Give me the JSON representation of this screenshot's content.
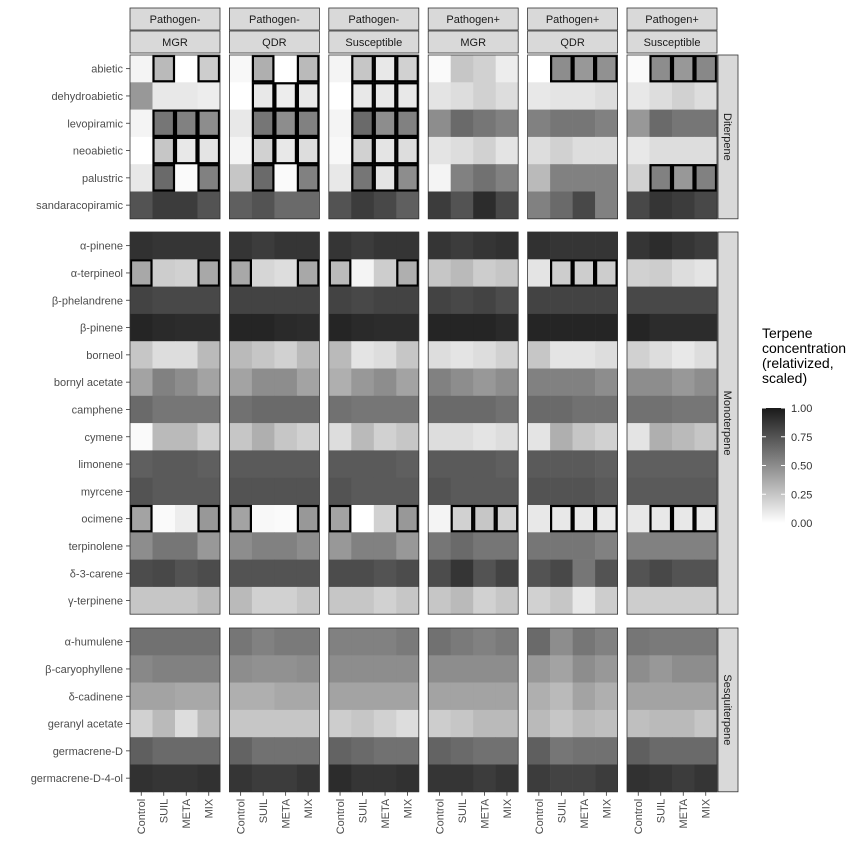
{
  "chart_data": {
    "type": "heatmap",
    "title": "",
    "xlabel": "",
    "ylabel": "",
    "facet_cols_top": [
      "Pathogen-",
      "Pathogen-",
      "Pathogen-",
      "Pathogen+",
      "Pathogen+",
      "Pathogen+"
    ],
    "facet_cols_bottom": [
      "MGR",
      "QDR",
      "Susceptible",
      "MGR",
      "QDR",
      "Susceptible"
    ],
    "x_categories": [
      "Control",
      "SUIL",
      "META",
      "MIX"
    ],
    "row_groups": [
      {
        "name": "Diterpene",
        "rows": [
          "abietic",
          "dehydroabietic",
          "levopiramic",
          "neoabietic",
          "palustric",
          "sandaracopiramic"
        ]
      },
      {
        "name": "Monoterpene",
        "rows": [
          "α-pinene",
          "α-terpineol",
          "β-phelandrene",
          "β-pinene",
          "borneol",
          "bornyl acetate",
          "camphene",
          "cymene",
          "limonene",
          "myrcene",
          "ocimene",
          "terpinolene",
          "δ-3-carene",
          "γ-terpinene"
        ]
      },
      {
        "name": "Sesquiterpene",
        "rows": [
          "α-humulene",
          "β-caryophyllene",
          "δ-cadinene",
          "geranyl acetate",
          "germacrene-D",
          "germacrene-D-4-ol"
        ]
      }
    ],
    "legend": {
      "title_lines": [
        "Terpene",
        "concentration",
        "(relativized,",
        "scaled)"
      ],
      "ticks": [
        "1.00",
        "0.75",
        "0.50",
        "0.25",
        "0.00"
      ],
      "tick_values": [
        1.0,
        0.75,
        0.5,
        0.25,
        0.0
      ],
      "color_low": "#ffffff",
      "color_high": "#1a1a1a"
    },
    "values": [
      [
        [
          0.05,
          0.3,
          0.0,
          0.22
        ],
        [
          0.03,
          0.35,
          0.0,
          0.3
        ],
        [
          0.05,
          0.25,
          0.1,
          0.2
        ],
        [
          0.02,
          0.25,
          0.2,
          0.08
        ],
        [
          0.0,
          0.5,
          0.45,
          0.48
        ],
        [
          0.02,
          0.5,
          0.45,
          0.52
        ]
      ],
      [
        [
          0.45,
          0.1,
          0.1,
          0.08
        ],
        [
          0.0,
          0.1,
          0.08,
          0.1
        ],
        [
          0.0,
          0.1,
          0.1,
          0.1
        ],
        [
          0.12,
          0.15,
          0.2,
          0.15
        ],
        [
          0.1,
          0.12,
          0.12,
          0.15
        ],
        [
          0.1,
          0.15,
          0.2,
          0.15
        ]
      ],
      [
        [
          0.05,
          0.6,
          0.55,
          0.5
        ],
        [
          0.1,
          0.6,
          0.5,
          0.55
        ],
        [
          0.05,
          0.65,
          0.5,
          0.55
        ],
        [
          0.5,
          0.65,
          0.6,
          0.55
        ],
        [
          0.55,
          0.6,
          0.6,
          0.55
        ],
        [
          0.45,
          0.65,
          0.6,
          0.6
        ]
      ],
      [
        [
          0.0,
          0.25,
          0.1,
          0.12
        ],
        [
          0.05,
          0.2,
          0.1,
          0.15
        ],
        [
          0.03,
          0.2,
          0.12,
          0.15
        ],
        [
          0.12,
          0.15,
          0.2,
          0.12
        ],
        [
          0.15,
          0.2,
          0.15,
          0.15
        ],
        [
          0.1,
          0.15,
          0.15,
          0.15
        ]
      ],
      [
        [
          0.1,
          0.65,
          0.02,
          0.55
        ],
        [
          0.25,
          0.65,
          0.02,
          0.55
        ],
        [
          0.1,
          0.6,
          0.12,
          0.5
        ],
        [
          0.05,
          0.55,
          0.62,
          0.55
        ],
        [
          0.3,
          0.55,
          0.55,
          0.55
        ],
        [
          0.2,
          0.55,
          0.45,
          0.55
        ]
      ],
      [
        [
          0.75,
          0.85,
          0.85,
          0.75
        ],
        [
          0.7,
          0.75,
          0.65,
          0.65
        ],
        [
          0.75,
          0.85,
          0.8,
          0.7
        ],
        [
          0.85,
          0.75,
          0.92,
          0.8
        ],
        [
          0.55,
          0.65,
          0.8,
          0.55
        ],
        [
          0.8,
          0.88,
          0.85,
          0.8
        ]
      ],
      [
        [
          0.9,
          0.88,
          0.88,
          0.88
        ],
        [
          0.88,
          0.85,
          0.88,
          0.88
        ],
        [
          0.88,
          0.85,
          0.88,
          0.88
        ],
        [
          0.88,
          0.85,
          0.88,
          0.9
        ],
        [
          0.9,
          0.88,
          0.88,
          0.88
        ],
        [
          0.88,
          0.92,
          0.88,
          0.85
        ]
      ],
      [
        [
          0.38,
          0.22,
          0.2,
          0.38
        ],
        [
          0.38,
          0.18,
          0.15,
          0.38
        ],
        [
          0.3,
          0.05,
          0.22,
          0.35
        ],
        [
          0.25,
          0.3,
          0.22,
          0.25
        ],
        [
          0.12,
          0.22,
          0.22,
          0.22
        ],
        [
          0.2,
          0.22,
          0.15,
          0.12
        ]
      ],
      [
        [
          0.82,
          0.8,
          0.8,
          0.8
        ],
        [
          0.82,
          0.82,
          0.82,
          0.82
        ],
        [
          0.82,
          0.8,
          0.82,
          0.82
        ],
        [
          0.82,
          0.8,
          0.82,
          0.78
        ],
        [
          0.82,
          0.82,
          0.82,
          0.82
        ],
        [
          0.8,
          0.8,
          0.8,
          0.8
        ]
      ],
      [
        [
          0.95,
          0.93,
          0.92,
          0.92
        ],
        [
          0.95,
          0.95,
          0.93,
          0.92
        ],
        [
          0.95,
          0.93,
          0.92,
          0.92
        ],
        [
          0.95,
          0.95,
          0.95,
          0.93
        ],
        [
          0.95,
          0.95,
          0.95,
          0.95
        ],
        [
          0.95,
          0.92,
          0.92,
          0.92
        ]
      ],
      [
        [
          0.25,
          0.15,
          0.15,
          0.3
        ],
        [
          0.3,
          0.25,
          0.2,
          0.3
        ],
        [
          0.3,
          0.12,
          0.15,
          0.25
        ],
        [
          0.15,
          0.12,
          0.15,
          0.2
        ],
        [
          0.25,
          0.12,
          0.12,
          0.15
        ],
        [
          0.2,
          0.15,
          0.1,
          0.15
        ]
      ],
      [
        [
          0.4,
          0.55,
          0.5,
          0.4
        ],
        [
          0.4,
          0.5,
          0.5,
          0.4
        ],
        [
          0.35,
          0.45,
          0.5,
          0.4
        ],
        [
          0.55,
          0.5,
          0.45,
          0.5
        ],
        [
          0.55,
          0.55,
          0.55,
          0.5
        ],
        [
          0.5,
          0.5,
          0.45,
          0.5
        ]
      ],
      [
        [
          0.65,
          0.6,
          0.6,
          0.6
        ],
        [
          0.62,
          0.65,
          0.65,
          0.65
        ],
        [
          0.62,
          0.6,
          0.6,
          0.6
        ],
        [
          0.65,
          0.65,
          0.65,
          0.62
        ],
        [
          0.65,
          0.65,
          0.62,
          0.62
        ],
        [
          0.62,
          0.62,
          0.6,
          0.6
        ]
      ],
      [
        [
          0.02,
          0.3,
          0.3,
          0.2
        ],
        [
          0.25,
          0.35,
          0.25,
          0.2
        ],
        [
          0.15,
          0.3,
          0.2,
          0.25
        ],
        [
          0.15,
          0.15,
          0.12,
          0.15
        ],
        [
          0.12,
          0.35,
          0.25,
          0.2
        ],
        [
          0.12,
          0.35,
          0.3,
          0.25
        ]
      ],
      [
        [
          0.7,
          0.72,
          0.72,
          0.7
        ],
        [
          0.72,
          0.72,
          0.72,
          0.72
        ],
        [
          0.72,
          0.72,
          0.72,
          0.7
        ],
        [
          0.72,
          0.72,
          0.72,
          0.7
        ],
        [
          0.72,
          0.72,
          0.72,
          0.7
        ],
        [
          0.7,
          0.7,
          0.7,
          0.7
        ]
      ],
      [
        [
          0.75,
          0.72,
          0.72,
          0.72
        ],
        [
          0.75,
          0.75,
          0.75,
          0.75
        ],
        [
          0.75,
          0.72,
          0.72,
          0.72
        ],
        [
          0.75,
          0.72,
          0.72,
          0.72
        ],
        [
          0.75,
          0.75,
          0.75,
          0.72
        ],
        [
          0.72,
          0.72,
          0.72,
          0.72
        ]
      ],
      [
        [
          0.4,
          0.02,
          0.08,
          0.45
        ],
        [
          0.4,
          0.03,
          0.02,
          0.45
        ],
        [
          0.4,
          0.0,
          0.2,
          0.45
        ],
        [
          0.05,
          0.2,
          0.25,
          0.2
        ],
        [
          0.1,
          0.1,
          0.1,
          0.1
        ],
        [
          0.1,
          0.1,
          0.1,
          0.1
        ]
      ],
      [
        [
          0.5,
          0.6,
          0.6,
          0.45
        ],
        [
          0.5,
          0.55,
          0.55,
          0.5
        ],
        [
          0.45,
          0.55,
          0.55,
          0.45
        ],
        [
          0.6,
          0.65,
          0.6,
          0.6
        ],
        [
          0.6,
          0.6,
          0.6,
          0.55
        ],
        [
          0.55,
          0.55,
          0.55,
          0.55
        ]
      ],
      [
        [
          0.78,
          0.8,
          0.75,
          0.78
        ],
        [
          0.75,
          0.75,
          0.75,
          0.75
        ],
        [
          0.78,
          0.78,
          0.75,
          0.78
        ],
        [
          0.78,
          0.88,
          0.75,
          0.82
        ],
        [
          0.75,
          0.8,
          0.6,
          0.75
        ],
        [
          0.75,
          0.8,
          0.75,
          0.75
        ]
      ],
      [
        [
          0.25,
          0.25,
          0.25,
          0.3
        ],
        [
          0.3,
          0.2,
          0.2,
          0.25
        ],
        [
          0.25,
          0.25,
          0.2,
          0.25
        ],
        [
          0.25,
          0.3,
          0.2,
          0.25
        ],
        [
          0.2,
          0.25,
          0.1,
          0.22
        ],
        [
          0.22,
          0.22,
          0.22,
          0.22
        ]
      ],
      [
        [
          0.62,
          0.62,
          0.62,
          0.62
        ],
        [
          0.6,
          0.55,
          0.58,
          0.58
        ],
        [
          0.55,
          0.55,
          0.55,
          0.58
        ],
        [
          0.62,
          0.58,
          0.55,
          0.58
        ],
        [
          0.65,
          0.5,
          0.6,
          0.55
        ],
        [
          0.6,
          0.58,
          0.58,
          0.58
        ]
      ],
      [
        [
          0.52,
          0.55,
          0.55,
          0.55
        ],
        [
          0.5,
          0.48,
          0.48,
          0.5
        ],
        [
          0.5,
          0.5,
          0.5,
          0.5
        ],
        [
          0.5,
          0.5,
          0.5,
          0.5
        ],
        [
          0.45,
          0.4,
          0.5,
          0.45
        ],
        [
          0.5,
          0.45,
          0.5,
          0.5
        ]
      ],
      [
        [
          0.4,
          0.4,
          0.38,
          0.38
        ],
        [
          0.35,
          0.35,
          0.38,
          0.38
        ],
        [
          0.4,
          0.4,
          0.4,
          0.4
        ],
        [
          0.4,
          0.4,
          0.4,
          0.4
        ],
        [
          0.35,
          0.3,
          0.4,
          0.35
        ],
        [
          0.4,
          0.4,
          0.4,
          0.4
        ]
      ],
      [
        [
          0.2,
          0.3,
          0.15,
          0.3
        ],
        [
          0.25,
          0.25,
          0.25,
          0.25
        ],
        [
          0.22,
          0.25,
          0.2,
          0.15
        ],
        [
          0.22,
          0.25,
          0.3,
          0.3
        ],
        [
          0.3,
          0.25,
          0.3,
          0.28
        ],
        [
          0.28,
          0.3,
          0.3,
          0.25
        ]
      ],
      [
        [
          0.7,
          0.65,
          0.65,
          0.65
        ],
        [
          0.68,
          0.62,
          0.62,
          0.62
        ],
        [
          0.68,
          0.65,
          0.62,
          0.62
        ],
        [
          0.68,
          0.65,
          0.62,
          0.62
        ],
        [
          0.7,
          0.6,
          0.62,
          0.62
        ],
        [
          0.7,
          0.65,
          0.65,
          0.65
        ]
      ],
      [
        [
          0.9,
          0.88,
          0.88,
          0.9
        ],
        [
          0.88,
          0.85,
          0.85,
          0.88
        ],
        [
          0.92,
          0.88,
          0.88,
          0.9
        ],
        [
          0.88,
          0.88,
          0.85,
          0.88
        ],
        [
          0.85,
          0.82,
          0.82,
          0.85
        ],
        [
          0.9,
          0.88,
          0.85,
          0.88
        ]
      ]
    ],
    "highlights": [
      {
        "row": 0,
        "panel": 0,
        "cols": [
          1,
          3
        ]
      },
      {
        "row": 0,
        "panel": 1,
        "cols": [
          1,
          3
        ]
      },
      {
        "row": 0,
        "panel": 2,
        "cols": [
          1,
          2,
          3
        ]
      },
      {
        "row": 0,
        "panel": 4,
        "cols": [
          1,
          2,
          3
        ]
      },
      {
        "row": 0,
        "panel": 5,
        "cols": [
          1,
          2,
          3
        ]
      },
      {
        "row": 1,
        "panel": 1,
        "cols": [
          1,
          2,
          3
        ]
      },
      {
        "row": 1,
        "panel": 2,
        "cols": [
          1,
          2,
          3
        ]
      },
      {
        "row": 2,
        "panel": 0,
        "cols": [
          1,
          2,
          3
        ]
      },
      {
        "row": 2,
        "panel": 1,
        "cols": [
          1,
          2,
          3
        ]
      },
      {
        "row": 2,
        "panel": 2,
        "cols": [
          1,
          2,
          3
        ]
      },
      {
        "row": 3,
        "panel": 0,
        "cols": [
          1,
          2,
          3
        ]
      },
      {
        "row": 3,
        "panel": 1,
        "cols": [
          1,
          2,
          3
        ]
      },
      {
        "row": 3,
        "panel": 2,
        "cols": [
          1,
          2,
          3
        ]
      },
      {
        "row": 4,
        "panel": 0,
        "cols": [
          1,
          3
        ]
      },
      {
        "row": 4,
        "panel": 1,
        "cols": [
          1,
          3
        ]
      },
      {
        "row": 4,
        "panel": 2,
        "cols": [
          1,
          2,
          3
        ]
      },
      {
        "row": 4,
        "panel": 5,
        "cols": [
          1,
          2,
          3
        ]
      },
      {
        "row": 7,
        "panel": 0,
        "cols": [
          0,
          3
        ]
      },
      {
        "row": 7,
        "panel": 1,
        "cols": [
          0,
          3
        ]
      },
      {
        "row": 7,
        "panel": 2,
        "cols": [
          0,
          3
        ]
      },
      {
        "row": 7,
        "panel": 4,
        "cols": [
          1,
          2,
          3
        ]
      },
      {
        "row": 16,
        "panel": 0,
        "cols": [
          0,
          3
        ]
      },
      {
        "row": 16,
        "panel": 1,
        "cols": [
          0,
          3
        ]
      },
      {
        "row": 16,
        "panel": 2,
        "cols": [
          0,
          3
        ]
      },
      {
        "row": 16,
        "panel": 3,
        "cols": [
          1,
          2,
          3
        ]
      },
      {
        "row": 16,
        "panel": 4,
        "cols": [
          1,
          2,
          3
        ]
      },
      {
        "row": 16,
        "panel": 5,
        "cols": [
          1,
          2,
          3
        ]
      }
    ]
  }
}
